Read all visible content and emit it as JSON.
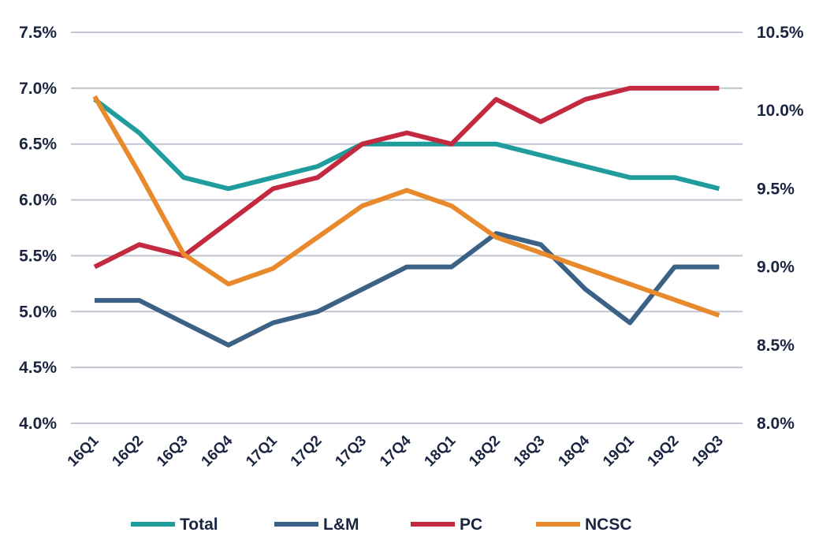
{
  "chart_data": {
    "type": "line",
    "title": "",
    "xlabel": "",
    "ylabel": "",
    "categories": [
      "16Q1",
      "16Q2",
      "16Q3",
      "16Q4",
      "17Q1",
      "17Q2",
      "17Q3",
      "17Q4",
      "18Q1",
      "18Q2",
      "18Q3",
      "18Q4",
      "19Q1",
      "19Q2",
      "19Q3"
    ],
    "y_left": {
      "range": [
        4.0,
        7.5
      ],
      "ticks": [
        4.0,
        4.5,
        5.0,
        5.5,
        6.0,
        6.5,
        7.0,
        7.5
      ],
      "tick_labels": [
        "4.0%",
        "4.5%",
        "5.0%",
        "5.5%",
        "6.0%",
        "6.5%",
        "7.0%",
        "7.5%"
      ]
    },
    "y_right": {
      "range": [
        8.0,
        10.5
      ],
      "ticks": [
        8.0,
        8.5,
        9.0,
        9.5,
        10.0,
        10.5
      ],
      "tick_labels": [
        "8.0%",
        "8.5%",
        "9.0%",
        "9.5%",
        "10.0%",
        "10.5%"
      ]
    },
    "grid": true,
    "legend_position": "bottom",
    "series": [
      {
        "name": "Total",
        "axis": "left",
        "color": "#1f9c9c",
        "values": [
          6.9,
          6.6,
          6.2,
          6.1,
          6.2,
          6.3,
          6.5,
          6.5,
          6.5,
          6.5,
          6.4,
          6.3,
          6.2,
          6.2,
          6.1
        ]
      },
      {
        "name": "L&M",
        "axis": "left",
        "color": "#3b6286",
        "values": [
          5.1,
          5.1,
          4.9,
          4.7,
          4.9,
          5.0,
          5.2,
          5.4,
          5.4,
          5.7,
          5.6,
          5.2,
          4.9,
          5.4,
          5.4
        ]
      },
      {
        "name": "PC",
        "axis": "left",
        "color": "#c32a40",
        "values": [
          5.4,
          5.6,
          5.5,
          5.8,
          6.1,
          6.2,
          6.5,
          6.6,
          6.5,
          6.9,
          6.7,
          6.9,
          7.0,
          7.0,
          7.0
        ]
      },
      {
        "name": "NCSC",
        "axis": "right",
        "color": "#e8892b",
        "values": [
          10.09,
          9.6,
          9.08,
          8.89,
          8.99,
          9.19,
          9.39,
          9.49,
          9.39,
          9.19,
          9.09,
          8.99,
          8.89,
          8.79,
          8.69
        ]
      }
    ]
  }
}
